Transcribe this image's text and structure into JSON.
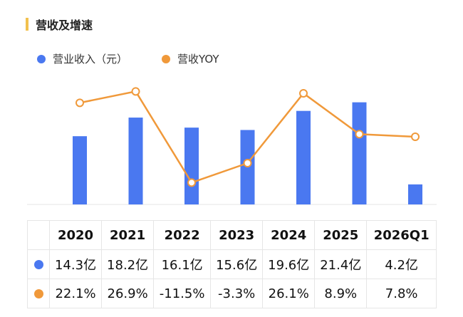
{
  "title": "营收及增速",
  "colors": {
    "bar": "#4a78f0",
    "line": "#f0993a",
    "accent": "#f2c14e"
  },
  "legend": [
    {
      "label": "营业收入（元）",
      "color": "#4a78f0"
    },
    {
      "label": "营收YOY",
      "color": "#f0993a"
    }
  ],
  "table": {
    "headers": [
      "2020",
      "2021",
      "2022",
      "2023",
      "2024",
      "2025",
      "2026Q1"
    ],
    "revenue_row": [
      "14.3亿",
      "18.2亿",
      "16.1亿",
      "15.6亿",
      "19.6亿",
      "21.4亿",
      "4.2亿"
    ],
    "yoy_row": [
      "22.1%",
      "26.9%",
      "-11.5%",
      "-3.3%",
      "26.1%",
      "8.9%",
      "7.8%"
    ]
  },
  "chart_data": {
    "type": "bar",
    "categories": [
      "2020",
      "2021",
      "2022",
      "2023",
      "2024",
      "2025",
      "2026Q1"
    ],
    "series": [
      {
        "name": "营业收入（元）",
        "type": "bar",
        "unit": "亿",
        "values": [
          14.3,
          18.2,
          16.1,
          15.6,
          19.6,
          21.4,
          4.2
        ]
      },
      {
        "name": "营收YOY",
        "type": "line",
        "unit": "%",
        "values": [
          22.1,
          26.9,
          -11.5,
          -3.3,
          26.1,
          8.9,
          7.8
        ]
      }
    ],
    "legend_position": "top-left",
    "grid": false
  }
}
